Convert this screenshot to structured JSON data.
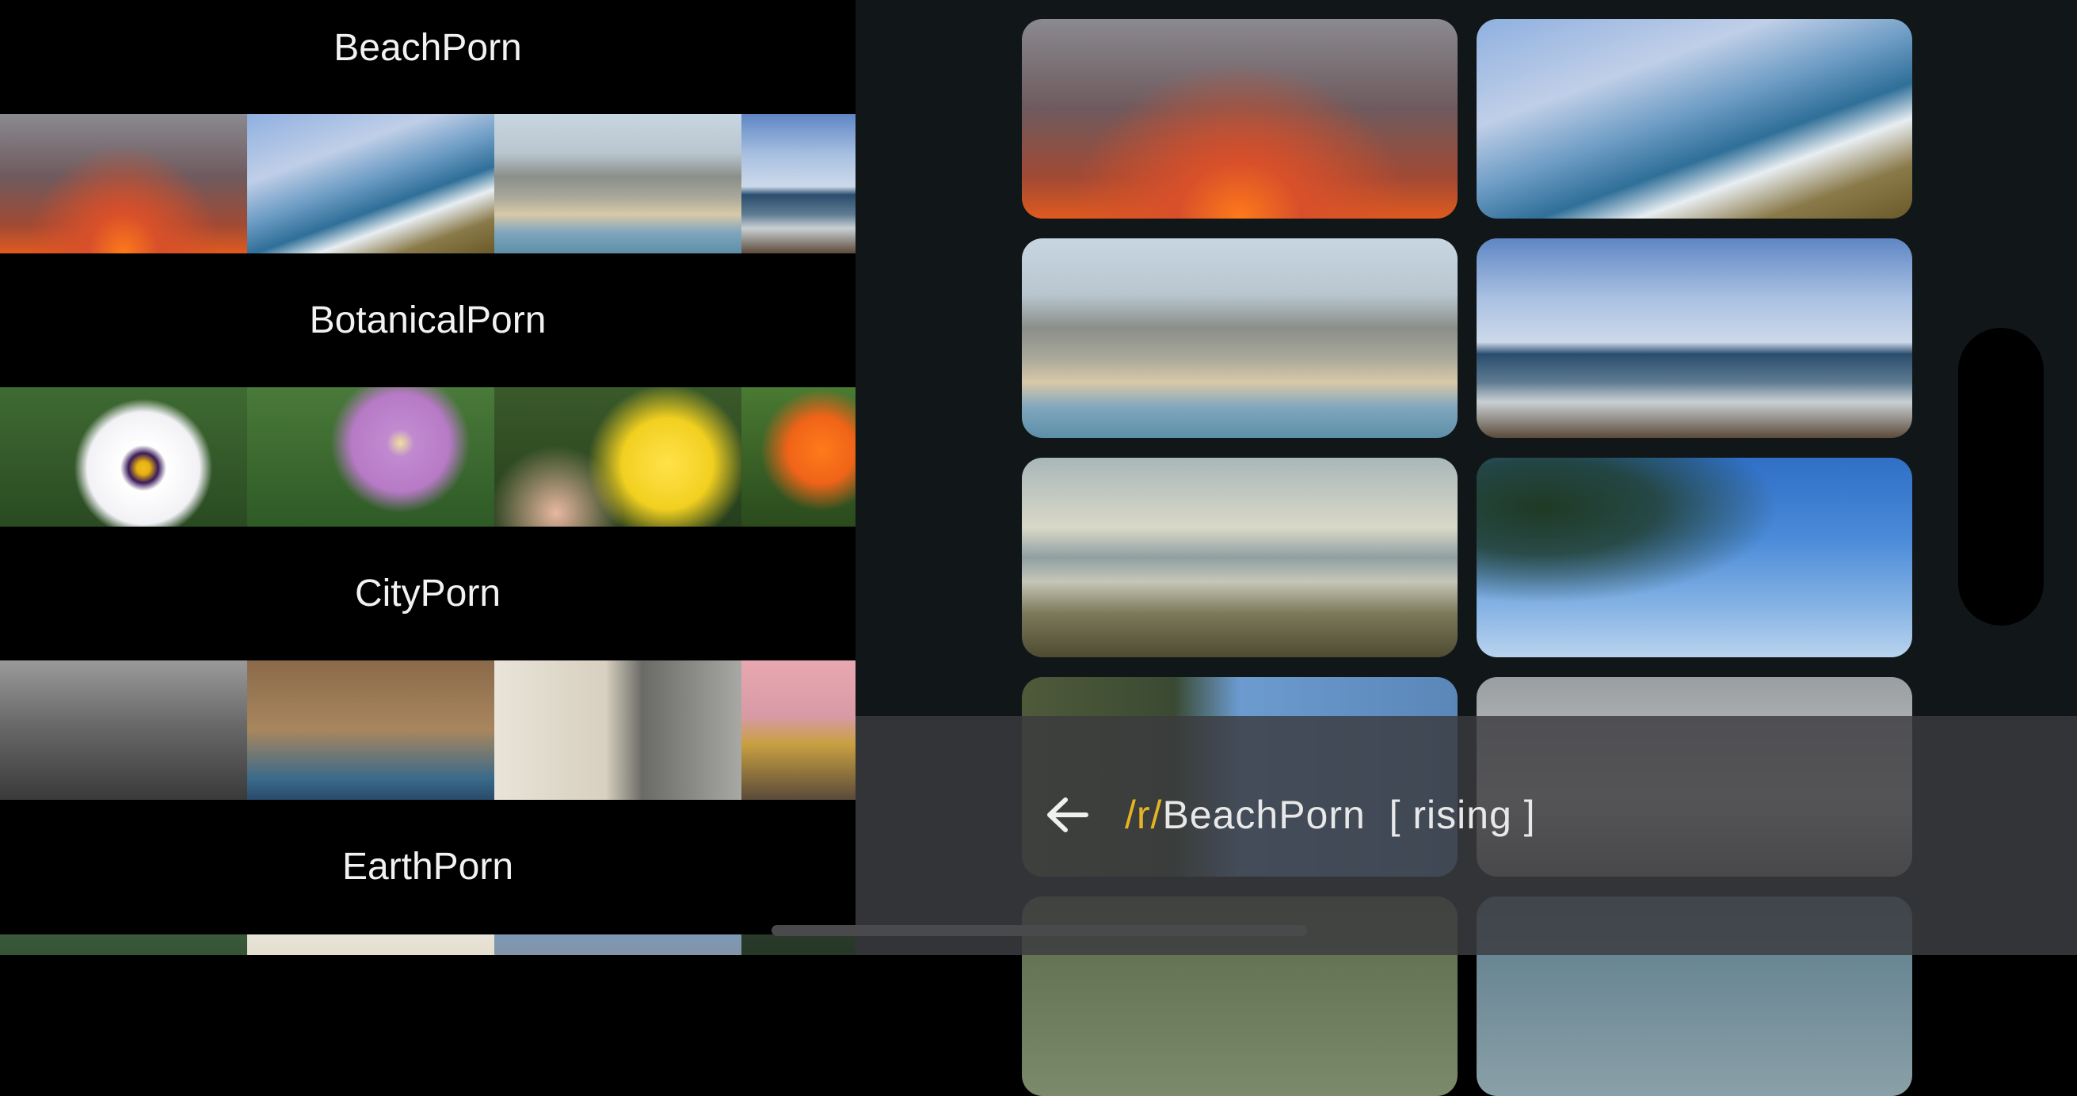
{
  "left_panel": {
    "sections": [
      {
        "title": "BeachPorn",
        "thumbnails": [
          "sunset-clouds",
          "rocky-coast",
          "city-beach",
          "ocean-horizon"
        ]
      },
      {
        "title": "BotanicalPorn",
        "thumbnails": [
          "pansy-flower",
          "clematis-flower",
          "daffodil-flower",
          "orange-flowers"
        ]
      },
      {
        "title": "CityPorn",
        "thumbnails": [
          "city-skyline-bw",
          "ornate-building",
          "tower-block",
          "pink-sky-city"
        ]
      },
      {
        "title": "EarthPorn",
        "thumbnails": [
          "forest",
          "bright-sky",
          "mountain-peaks",
          "trees"
        ]
      }
    ]
  },
  "right_panel": {
    "grid_images": [
      "sunset-clouds",
      "rocky-coast",
      "city-beach",
      "ocean-horizon",
      "dune-path",
      "palm-sky",
      "cliff-cove",
      "grey-sky",
      "row5-left",
      "row5-right"
    ]
  },
  "bottom_bar": {
    "back_icon": "arrow-left-icon",
    "subreddit_prefix": "/r/",
    "subreddit_name": "BeachPorn",
    "sort_label": "[ rising ]"
  },
  "colors": {
    "accent": "#e6b422",
    "panel_bg": "#111719",
    "left_bg": "#000000",
    "bar_bg": "#3a3a3e"
  }
}
